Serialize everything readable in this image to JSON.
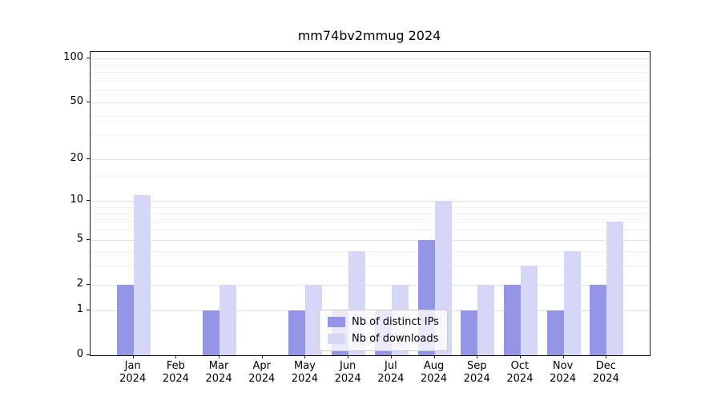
{
  "chart_data": {
    "type": "bar",
    "title": "mm74bv2mmug 2024",
    "categories": [
      "Jan 2024",
      "Feb 2024",
      "Mar 2024",
      "Apr 2024",
      "May 2024",
      "Jun 2024",
      "Jul 2024",
      "Aug 2024",
      "Sep 2024",
      "Oct 2024",
      "Nov 2024",
      "Dec 2024"
    ],
    "series": [
      {
        "name": "Nb of distinct IPs",
        "color": "#9595e8",
        "values": [
          2,
          0,
          1,
          0,
          1,
          1,
          1,
          5,
          1,
          2,
          1,
          2
        ]
      },
      {
        "name": "Nb of downloads",
        "color": "#d6d6f6",
        "values": [
          11,
          0,
          2,
          0,
          2,
          4,
          2,
          10,
          2,
          3,
          4,
          7
        ]
      }
    ],
    "yscale": "log1p",
    "ylim": [
      0,
      100
    ],
    "yticks": [
      0,
      1,
      2,
      5,
      10,
      20,
      50,
      100
    ],
    "minor_gridlines": [
      3,
      4,
      6,
      7,
      8,
      9,
      15,
      30,
      40,
      60,
      70,
      80,
      90
    ],
    "grid": true,
    "legend": {
      "position": "lower center inside"
    }
  },
  "colors": {
    "background": "#ffffff",
    "axis": "#1a1a1a",
    "grid_major": "#e2e2e2",
    "grid_minor": "#f0f0f0",
    "legend_border": "#cccccc",
    "distinct_ips_bar": "#9595e8",
    "downloads_bar": "#d6d6f6"
  }
}
